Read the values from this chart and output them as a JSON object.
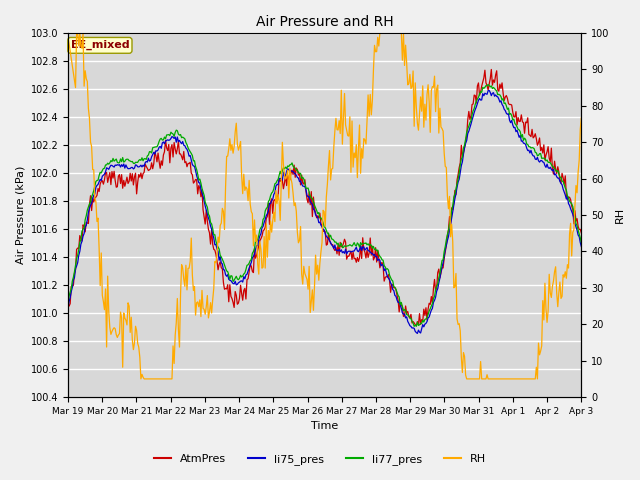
{
  "title": "Air Pressure and RH",
  "xlabel": "Time",
  "ylabel_left": "Air Pressure (kPa)",
  "ylabel_right": "RH",
  "ylim_left": [
    100.4,
    103.0
  ],
  "ylim_right": [
    0,
    100
  ],
  "yticks_left": [
    100.4,
    100.6,
    100.8,
    101.0,
    101.2,
    101.4,
    101.6,
    101.8,
    102.0,
    102.2,
    102.4,
    102.6,
    102.8,
    103.0
  ],
  "yticks_right": [
    0,
    10,
    20,
    30,
    40,
    50,
    60,
    70,
    80,
    90,
    100
  ],
  "colors": {
    "AtmPres": "#cc0000",
    "li75_pres": "#0000cc",
    "li77_pres": "#00aa00",
    "RH": "#ffaa00"
  },
  "annotation_text": "EE_mixed",
  "annotation_color": "#8b0000",
  "annotation_bg": "#ffffcc",
  "annotation_border": "#999900",
  "plot_bg": "#d8d8d8",
  "grid_color": "#ffffff",
  "fig_bg": "#f0f0f0",
  "n_points": 480,
  "seed": 42
}
